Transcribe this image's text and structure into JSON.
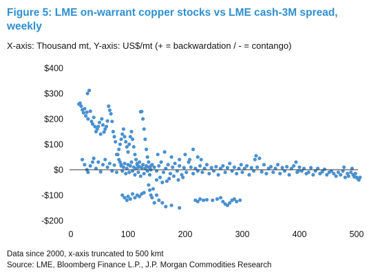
{
  "header": {
    "title": "Figure 5: LME on-warrant copper stocks vs LME cash-3M spread, weekly",
    "subtitle": "X-axis: Thousand mt, Y-axis: US$/mt (+ = backwardation / - = contango)"
  },
  "footer": {
    "note": "Data since 2000, x-axis truncated to 500 kmt",
    "source": "Source: LME, Bloomberg Finance L.P., J.P. Morgan Commodities Research"
  },
  "colors": {
    "point": "#4a90d0",
    "title": "#2e8fd0",
    "zero_line": "#333333"
  },
  "chart_data": {
    "type": "scatter",
    "title": "Figure 5: LME on-warrant copper stocks vs LME cash-3M spread, weekly",
    "xlabel": "Thousand mt",
    "ylabel": "US$/mt",
    "xlim": [
      0,
      500
    ],
    "ylim": [
      -200,
      400
    ],
    "x_ticks": [
      0,
      100,
      200,
      300,
      400,
      500
    ],
    "x_tick_labels": [
      "0",
      "100",
      "200",
      "300",
      "400",
      "500"
    ],
    "y_ticks": [
      400,
      300,
      200,
      100,
      0,
      -100,
      -200
    ],
    "y_tick_labels": [
      "$400",
      "$300",
      "$200",
      "$100",
      "$0",
      "-$100",
      "-$200"
    ],
    "grid": false,
    "series": [
      {
        "points": [
          [
            14,
            258
          ],
          [
            16,
            262
          ],
          [
            18,
            250
          ],
          [
            20,
            236
          ],
          [
            22,
            224
          ],
          [
            24,
            240
          ],
          [
            26,
            212
          ],
          [
            28,
            226
          ],
          [
            29,
            300
          ],
          [
            30,
            200
          ],
          [
            32,
            312
          ],
          [
            34,
            230
          ],
          [
            36,
            190
          ],
          [
            38,
            180
          ],
          [
            40,
            206
          ],
          [
            42,
            170
          ],
          [
            44,
            150
          ],
          [
            46,
            160
          ],
          [
            48,
            170
          ],
          [
            50,
            186
          ],
          [
            52,
            140
          ],
          [
            54,
            200
          ],
          [
            56,
            176
          ],
          [
            58,
            148
          ],
          [
            60,
            160
          ],
          [
            62,
            170
          ],
          [
            64,
            192
          ],
          [
            66,
            250
          ],
          [
            68,
            234
          ],
          [
            70,
            220
          ],
          [
            72,
            190
          ],
          [
            74,
            150
          ],
          [
            76,
            130
          ],
          [
            78,
            110
          ],
          [
            20,
            40
          ],
          [
            24,
            20
          ],
          [
            28,
            0
          ],
          [
            30,
            -10
          ],
          [
            34,
            15
          ],
          [
            38,
            30
          ],
          [
            40,
            45
          ],
          [
            44,
            5
          ],
          [
            48,
            30
          ],
          [
            52,
            -8
          ],
          [
            56,
            20
          ],
          [
            60,
            40
          ],
          [
            64,
            10
          ],
          [
            68,
            25
          ],
          [
            72,
            -5
          ],
          [
            76,
            18
          ],
          [
            80,
            60
          ],
          [
            84,
            40
          ],
          [
            88,
            20
          ],
          [
            80,
            -10
          ],
          [
            82,
            60
          ],
          [
            84,
            80
          ],
          [
            86,
            100
          ],
          [
            88,
            120
          ],
          [
            90,
            140
          ],
          [
            92,
            160
          ],
          [
            94,
            130
          ],
          [
            96,
            110
          ],
          [
            98,
            90
          ],
          [
            100,
            70
          ],
          [
            102,
            100
          ],
          [
            104,
            130
          ],
          [
            106,
            150
          ],
          [
            108,
            120
          ],
          [
            110,
            90
          ],
          [
            112,
            60
          ],
          [
            114,
            40
          ],
          [
            116,
            20
          ],
          [
            118,
            10
          ],
          [
            120,
            30
          ],
          [
            122,
            228
          ],
          [
            124,
            229
          ],
          [
            126,
            200
          ],
          [
            128,
            160
          ],
          [
            130,
            120
          ],
          [
            132,
            80
          ],
          [
            134,
            50
          ],
          [
            136,
            30
          ],
          [
            138,
            10
          ],
          [
            140,
            0
          ],
          [
            86,
            30
          ],
          [
            88,
            15
          ],
          [
            90,
            -5
          ],
          [
            92,
            10
          ],
          [
            94,
            25
          ],
          [
            96,
            -15
          ],
          [
            98,
            5
          ],
          [
            100,
            20
          ],
          [
            102,
            -10
          ],
          [
            104,
            15
          ],
          [
            106,
            30
          ],
          [
            108,
            -5
          ],
          [
            110,
            10
          ],
          [
            112,
            -20
          ],
          [
            114,
            5
          ],
          [
            116,
            25
          ],
          [
            118,
            -10
          ],
          [
            120,
            12
          ],
          [
            122,
            -25
          ],
          [
            124,
            8
          ],
          [
            126,
            20
          ],
          [
            128,
            -15
          ],
          [
            130,
            5
          ],
          [
            132,
            15
          ],
          [
            134,
            -5
          ],
          [
            136,
            10
          ],
          [
            138,
            -20
          ],
          [
            140,
            15
          ],
          [
            90,
            -100
          ],
          [
            94,
            -110
          ],
          [
            98,
            -120
          ],
          [
            100,
            -105
          ],
          [
            104,
            -115
          ],
          [
            108,
            -95
          ],
          [
            112,
            -110
          ],
          [
            116,
            -100
          ],
          [
            120,
            -105
          ],
          [
            124,
            -95
          ],
          [
            128,
            -90
          ],
          [
            136,
            -60
          ],
          [
            138,
            -80
          ],
          [
            140,
            -100
          ],
          [
            142,
            -110
          ],
          [
            144,
            -75
          ],
          [
            146,
            -130
          ],
          [
            150,
            -100
          ],
          [
            154,
            -120
          ],
          [
            160,
            -130
          ],
          [
            166,
            -145
          ],
          [
            176,
            -140
          ],
          [
            190,
            -150
          ],
          [
            142,
            20
          ],
          [
            146,
            10
          ],
          [
            150,
            -5
          ],
          [
            154,
            15
          ],
          [
            158,
            30
          ],
          [
            162,
            -10
          ],
          [
            166,
            5
          ],
          [
            170,
            20
          ],
          [
            174,
            -15
          ],
          [
            178,
            10
          ],
          [
            182,
            25
          ],
          [
            186,
            -5
          ],
          [
            190,
            15
          ],
          [
            194,
            -20
          ],
          [
            198,
            8
          ],
          [
            202,
            -10
          ],
          [
            206,
            30
          ],
          [
            210,
            10
          ],
          [
            214,
            -15
          ],
          [
            218,
            5
          ],
          [
            150,
            -40
          ],
          [
            156,
            -30
          ],
          [
            160,
            -50
          ],
          [
            168,
            -45
          ],
          [
            172,
            -35
          ],
          [
            180,
            -25
          ],
          [
            188,
            -40
          ],
          [
            196,
            -30
          ],
          [
            152,
            60
          ],
          [
            164,
            70
          ],
          [
            176,
            50
          ],
          [
            190,
            40
          ],
          [
            200,
            60
          ],
          [
            208,
            40
          ],
          [
            214,
            80
          ],
          [
            222,
            50
          ],
          [
            228,
            40
          ],
          [
            222,
            -5
          ],
          [
            226,
            15
          ],
          [
            230,
            -10
          ],
          [
            234,
            5
          ],
          [
            238,
            20
          ],
          [
            242,
            -15
          ],
          [
            246,
            8
          ],
          [
            250,
            -5
          ],
          [
            254,
            12
          ],
          [
            258,
            -20
          ],
          [
            262,
            5
          ],
          [
            266,
            15
          ],
          [
            270,
            -10
          ],
          [
            274,
            8
          ],
          [
            278,
            25
          ],
          [
            282,
            -5
          ],
          [
            286,
            10
          ],
          [
            290,
            -15
          ],
          [
            294,
            5
          ],
          [
            298,
            20
          ],
          [
            300,
            -10
          ],
          [
            304,
            5
          ],
          [
            308,
            15
          ],
          [
            312,
            -20
          ],
          [
            316,
            8
          ],
          [
            320,
            -5
          ],
          [
            322,
            40
          ],
          [
            324,
            55
          ],
          [
            326,
            10
          ],
          [
            330,
            45
          ],
          [
            334,
            -8
          ],
          [
            338,
            20
          ],
          [
            342,
            -15
          ],
          [
            346,
            5
          ],
          [
            350,
            12
          ],
          [
            354,
            -10
          ],
          [
            358,
            5
          ],
          [
            362,
            20
          ],
          [
            366,
            -15
          ],
          [
            370,
            8
          ],
          [
            374,
            -5
          ],
          [
            378,
            12
          ],
          [
            382,
            -20
          ],
          [
            386,
            5
          ],
          [
            390,
            15
          ],
          [
            394,
            30
          ],
          [
            396,
            -10
          ],
          [
            398,
            -5
          ],
          [
            218,
            -120
          ],
          [
            222,
            -125
          ],
          [
            226,
            -115
          ],
          [
            232,
            -120
          ],
          [
            238,
            -118
          ],
          [
            248,
            -120
          ],
          [
            256,
            -115
          ],
          [
            262,
            -110
          ],
          [
            266,
            -125
          ],
          [
            270,
            -135
          ],
          [
            274,
            -140
          ],
          [
            278,
            -130
          ],
          [
            282,
            -120
          ],
          [
            286,
            -115
          ],
          [
            290,
            -125
          ],
          [
            296,
            -120
          ],
          [
            400,
            10
          ],
          [
            404,
            -5
          ],
          [
            408,
            5
          ],
          [
            412,
            -15
          ],
          [
            416,
            -10
          ],
          [
            420,
            8
          ],
          [
            424,
            -20
          ],
          [
            428,
            -5
          ],
          [
            432,
            5
          ],
          [
            436,
            -15
          ],
          [
            440,
            -8
          ],
          [
            444,
            2
          ],
          [
            448,
            -20
          ],
          [
            452,
            -10
          ],
          [
            456,
            -5
          ],
          [
            460,
            -15
          ],
          [
            464,
            -25
          ],
          [
            468,
            -10
          ],
          [
            472,
            -20
          ],
          [
            476,
            -5
          ],
          [
            478,
            10
          ],
          [
            480,
            -30
          ],
          [
            484,
            -15
          ],
          [
            486,
            -25
          ],
          [
            490,
            -10
          ],
          [
            492,
            5
          ],
          [
            494,
            -20
          ],
          [
            496,
            -28
          ],
          [
            498,
            -15
          ],
          [
            500,
            -30
          ],
          [
            502,
            -35
          ],
          [
            504,
            -40
          ],
          [
            506,
            -30
          ]
        ]
      }
    ]
  }
}
